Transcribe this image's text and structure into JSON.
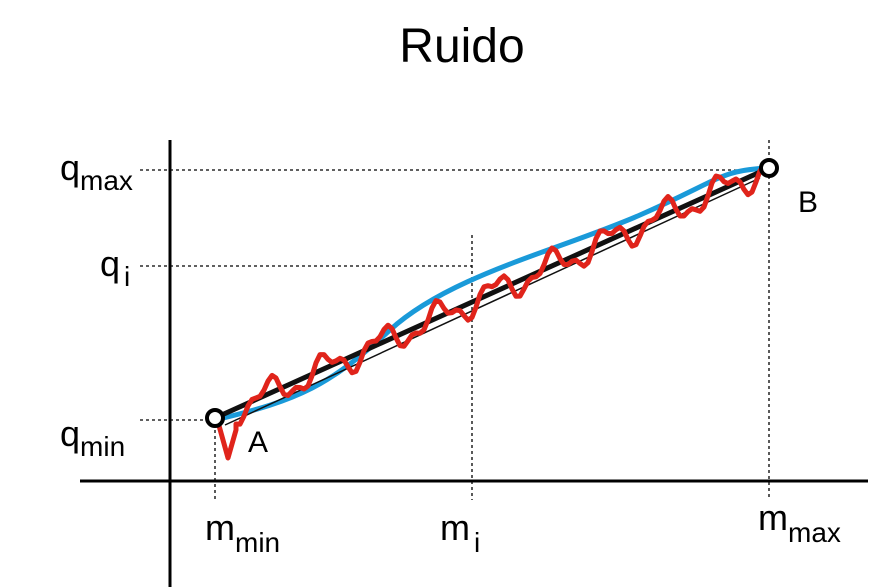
{
  "title": "Ruido",
  "y_labels": [
    {
      "base": "q",
      "sub": "max"
    },
    {
      "base": "q",
      "sub": "i"
    },
    {
      "base": "q",
      "sub": "min"
    }
  ],
  "x_labels": [
    {
      "base": "m",
      "sub": "min"
    },
    {
      "base": "m",
      "sub": "i"
    },
    {
      "base": "m",
      "sub": "max"
    }
  ],
  "points": [
    {
      "label": "A"
    },
    {
      "label": "B"
    }
  ]
}
